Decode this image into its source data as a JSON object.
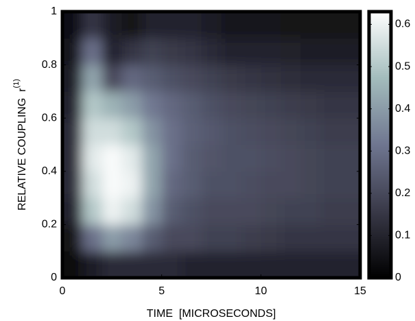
{
  "chart_data": {
    "type": "heatmap",
    "xlabel": "TIME  [MICROSECONDS]",
    "ylabel": "RELATIVE COUPLING  r",
    "ylabel_superscript": "(1)",
    "x": [
      0.5,
      1.5,
      2.5,
      3.5,
      4.5,
      5.5,
      6.5,
      7.5,
      8.5,
      9.5,
      10.5,
      11.5,
      12.5,
      13.5,
      14.5
    ],
    "y": [
      0.05,
      0.15,
      0.25,
      0.35,
      0.45,
      0.55,
      0.65,
      0.75,
      0.85,
      0.95
    ],
    "z": [
      [
        0.02,
        0.08,
        0.12,
        0.12,
        0.12,
        0.12,
        0.1,
        0.1,
        0.1,
        0.1,
        0.1,
        0.1,
        0.1,
        0.1,
        0.1
      ],
      [
        0.05,
        0.3,
        0.4,
        0.35,
        0.25,
        0.2,
        0.2,
        0.18,
        0.18,
        0.17,
        0.16,
        0.15,
        0.15,
        0.15,
        0.15
      ],
      [
        0.1,
        0.5,
        0.6,
        0.55,
        0.38,
        0.25,
        0.22,
        0.2,
        0.2,
        0.2,
        0.19,
        0.18,
        0.18,
        0.17,
        0.17
      ],
      [
        0.12,
        0.55,
        0.62,
        0.6,
        0.42,
        0.28,
        0.25,
        0.22,
        0.22,
        0.21,
        0.2,
        0.2,
        0.19,
        0.18,
        0.18
      ],
      [
        0.12,
        0.58,
        0.62,
        0.58,
        0.42,
        0.3,
        0.25,
        0.23,
        0.22,
        0.22,
        0.21,
        0.2,
        0.19,
        0.18,
        0.18
      ],
      [
        0.12,
        0.55,
        0.55,
        0.5,
        0.38,
        0.3,
        0.26,
        0.24,
        0.22,
        0.21,
        0.2,
        0.19,
        0.18,
        0.17,
        0.17
      ],
      [
        0.1,
        0.5,
        0.45,
        0.4,
        0.32,
        0.28,
        0.25,
        0.22,
        0.2,
        0.19,
        0.18,
        0.17,
        0.16,
        0.15,
        0.15
      ],
      [
        0.08,
        0.42,
        0.2,
        0.28,
        0.25,
        0.22,
        0.2,
        0.18,
        0.16,
        0.15,
        0.14,
        0.13,
        0.12,
        0.12,
        0.12
      ],
      [
        0.06,
        0.3,
        0.1,
        0.15,
        0.18,
        0.16,
        0.15,
        0.12,
        0.1,
        0.1,
        0.1,
        0.09,
        0.08,
        0.08,
        0.08
      ],
      [
        0.04,
        0.15,
        0.08,
        0.05,
        0.1,
        0.1,
        0.1,
        0.08,
        0.06,
        0.06,
        0.06,
        0.05,
        0.05,
        0.05,
        0.05
      ]
    ],
    "xlim": [
      0,
      15
    ],
    "xticks": [
      0,
      5,
      10,
      15
    ],
    "ylim": [
      0,
      1
    ],
    "yticks": [
      0,
      0.2,
      0.4,
      0.6,
      0.8,
      1
    ],
    "colormap": [
      "#000000",
      "#393948",
      "#6f7690",
      "#a3bcbc",
      "#ffffff"
    ],
    "clim": [
      0,
      0.63
    ],
    "cticks": [
      0,
      0.1,
      0.2,
      0.3,
      0.4,
      0.5,
      0.6
    ]
  }
}
